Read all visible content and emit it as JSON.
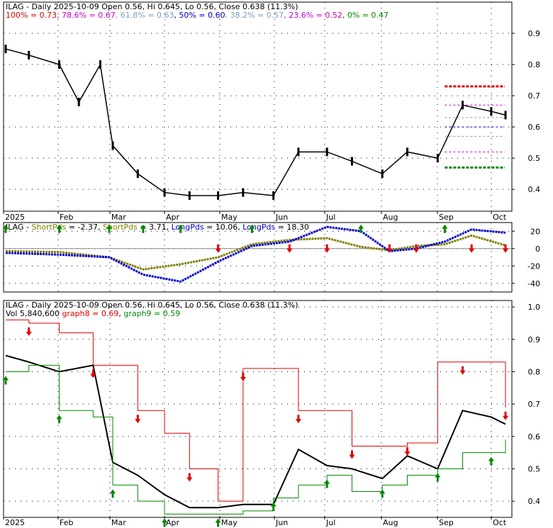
{
  "colors": {
    "black": "#000000",
    "red": "#e00000",
    "green": "#008800",
    "blue": "#0000cc",
    "olive": "#808000",
    "magenta": "#cc00cc",
    "steel": "#7f9fbf",
    "grid": "#000000"
  },
  "x_month_labels": [
    "2025",
    "Feb",
    "Mar",
    "Apr",
    "May",
    "Jun",
    "Jul",
    "Aug",
    "Sep",
    "Oct"
  ],
  "panel1": {
    "title": "ILAG - Daily 2025-10-09 Open 0.56, Hi 0.645, Lo 0.56, Close 0.638 (11.3%)",
    "fib": [
      {
        "label": "100% = 0.73",
        "color": "#e00000"
      },
      {
        "label": "78.6% = 0.67",
        "color": "#cc00cc"
      },
      {
        "label": "61.8% = 0.63",
        "color": "#7f9fbf"
      },
      {
        "label": "50% = 0.60",
        "color": "#0000cc"
      },
      {
        "label": "38.2% = 0.57",
        "color": "#7f9fbf"
      },
      {
        "label": "23.6% = 0.52",
        "color": "#cc00cc"
      },
      {
        "label": "0% = 0.47",
        "color": "#008800"
      }
    ],
    "y_ticks": [
      "0.9",
      "0.8",
      "0.7",
      "0.6",
      "0.5",
      "0.4"
    ],
    "y_values": [
      0.9,
      0.8,
      0.7,
      0.6,
      0.5,
      0.4
    ],
    "ylim": [
      0.33,
      1.0
    ]
  },
  "panel2": {
    "legend": [
      {
        "label": "ILAG - ",
        "color": "#000000"
      },
      {
        "label": "ShortPds",
        "color": "#808000"
      },
      {
        "label": " = -2.37, ",
        "color": "#000000"
      },
      {
        "label": "ShortPds",
        "color": "#808000"
      },
      {
        "label": " = 3.71, ",
        "color": "#000000"
      },
      {
        "label": "LongPds",
        "color": "#0000cc"
      },
      {
        "label": " = 10.06, ",
        "color": "#000000"
      },
      {
        "label": "LongPds",
        "color": "#0000cc"
      },
      {
        "label": " = 18.30",
        "color": "#000000"
      }
    ],
    "y_ticks": [
      "20",
      "0",
      "-20",
      "-40"
    ],
    "y_values": [
      20,
      0,
      -20,
      -40
    ],
    "ylim": [
      -50,
      30
    ]
  },
  "panel3": {
    "title": "ILAG - Daily 2025-10-09 Open 0.56, Hi 0.645, Lo 0.56, Close 0.638 (11.3%)",
    "legend": [
      {
        "label": "Vol 5,840,600 ",
        "color": "#000000"
      },
      {
        "label": "graph8 = 0.69",
        "color": "#e00000"
      },
      {
        "label": ", ",
        "color": "#000000"
      },
      {
        "label": "graph9 = 0.59",
        "color": "#008800"
      }
    ],
    "y_ticks": [
      "1.0",
      "0.9",
      "0.8",
      "0.7",
      "0.6",
      "0.5",
      "0.4"
    ],
    "y_values": [
      1.0,
      0.9,
      0.8,
      0.7,
      0.6,
      0.5,
      0.4
    ],
    "ylim": [
      0.35,
      1.02
    ]
  },
  "chart_data": [
    {
      "type": "line",
      "title": "ILAG - Daily 2025-10-09 Open 0.56, Hi 0.645, Lo 0.56, Close 0.638 (11.3%)",
      "x": [
        "2025-01-02",
        "2025-01-15",
        "2025-02-01",
        "2025-02-12",
        "2025-02-24",
        "2025-03-03",
        "2025-03-17",
        "2025-04-01",
        "2025-04-15",
        "2025-05-01",
        "2025-05-15",
        "2025-06-01",
        "2025-06-15",
        "2025-07-01",
        "2025-07-15",
        "2025-08-01",
        "2025-08-15",
        "2025-09-01",
        "2025-09-15",
        "2025-10-01",
        "2025-10-09"
      ],
      "series": [
        {
          "name": "Close",
          "values": [
            0.85,
            0.83,
            0.8,
            0.68,
            0.8,
            0.54,
            0.45,
            0.39,
            0.38,
            0.38,
            0.39,
            0.38,
            0.52,
            0.52,
            0.49,
            0.45,
            0.52,
            0.5,
            0.67,
            0.65,
            0.638
          ]
        }
      ],
      "fib_levels": {
        "100%": 0.73,
        "78.6%": 0.67,
        "61.8%": 0.63,
        "50%": 0.6,
        "38.2%": 0.57,
        "23.6%": 0.52,
        "0%": 0.47
      },
      "ylim": [
        0.33,
        1.0
      ]
    },
    {
      "type": "line",
      "title": "ILAG - ShortPds = -2.37, ShortPds = 3.71, LongPds = 10.06, LongPds = 18.30",
      "x": [
        "2025-01-02",
        "2025-02-01",
        "2025-03-01",
        "2025-03-20",
        "2025-04-10",
        "2025-05-01",
        "2025-05-20",
        "2025-06-10",
        "2025-07-01",
        "2025-07-20",
        "2025-08-05",
        "2025-08-20",
        "2025-09-05",
        "2025-09-20",
        "2025-10-09"
      ],
      "series": [
        {
          "name": "ShortPds",
          "values": [
            -3,
            -4,
            -10,
            -24,
            -18,
            -10,
            5,
            10,
            12,
            2,
            -2,
            3,
            5,
            15,
            3.71
          ]
        },
        {
          "name": "LongPds",
          "values": [
            -5,
            -7,
            -10,
            -30,
            -38,
            -15,
            3,
            8,
            25,
            20,
            -3,
            0,
            8,
            22,
            18.3
          ]
        }
      ],
      "ylim": [
        -50,
        30
      ]
    },
    {
      "type": "line",
      "title": "ILAG - Daily 2025-10-09 Open 0.56, Hi 0.645, Lo 0.56, Close 0.638 (11.3%)",
      "x": [
        "2025-01-02",
        "2025-01-15",
        "2025-02-01",
        "2025-02-20",
        "2025-03-03",
        "2025-03-17",
        "2025-04-01",
        "2025-04-15",
        "2025-05-01",
        "2025-05-15",
        "2025-06-01",
        "2025-06-15",
        "2025-07-01",
        "2025-07-15",
        "2025-08-01",
        "2025-08-15",
        "2025-09-01",
        "2025-09-15",
        "2025-10-01",
        "2025-10-09"
      ],
      "series": [
        {
          "name": "Close",
          "values": [
            0.85,
            0.83,
            0.8,
            0.82,
            0.52,
            0.48,
            0.42,
            0.38,
            0.38,
            0.39,
            0.39,
            0.56,
            0.51,
            0.5,
            0.47,
            0.54,
            0.5,
            0.68,
            0.66,
            0.638
          ]
        },
        {
          "name": "graph8",
          "values": [
            0.96,
            0.95,
            0.92,
            0.82,
            0.82,
            0.68,
            0.61,
            0.5,
            0.4,
            0.81,
            0.81,
            0.68,
            0.68,
            0.57,
            0.57,
            0.58,
            0.83,
            0.83,
            0.83,
            0.69
          ]
        },
        {
          "name": "graph9",
          "values": [
            0.8,
            0.82,
            0.68,
            0.66,
            0.45,
            0.4,
            0.36,
            0.36,
            0.36,
            0.37,
            0.41,
            0.45,
            0.48,
            0.43,
            0.45,
            0.48,
            0.5,
            0.55,
            0.55,
            0.59
          ]
        }
      ],
      "ylim": [
        0.35,
        1.02
      ]
    }
  ]
}
